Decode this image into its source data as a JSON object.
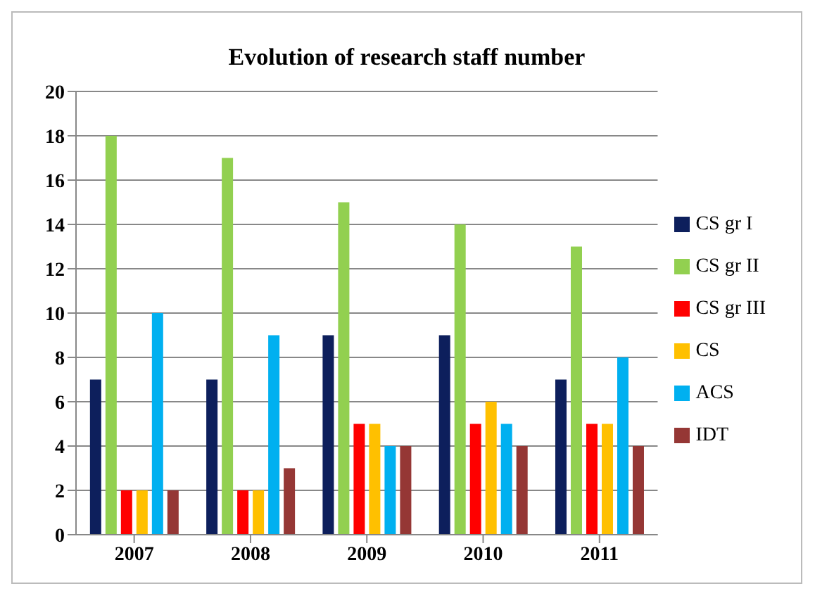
{
  "chart_data": {
    "type": "bar",
    "title": "Evolution of research staff number",
    "categories": [
      "2007",
      "2008",
      "2009",
      "2010",
      "2011"
    ],
    "series": [
      {
        "name": "CS gr I",
        "color": "#0d1f5c",
        "values": [
          7,
          7,
          9,
          9,
          7
        ]
      },
      {
        "name": "CS gr II",
        "color": "#92d050",
        "values": [
          18,
          17,
          15,
          14,
          13
        ]
      },
      {
        "name": "CS gr III",
        "color": "#ff0000",
        "values": [
          2,
          2,
          5,
          5,
          5
        ]
      },
      {
        "name": "CS",
        "color": "#ffc000",
        "values": [
          2,
          2,
          5,
          6,
          5
        ]
      },
      {
        "name": "ACS",
        "color": "#00b0f0",
        "values": [
          10,
          9,
          4,
          5,
          8
        ]
      },
      {
        "name": "IDT",
        "color": "#953735",
        "values": [
          2,
          3,
          4,
          4,
          4
        ]
      }
    ],
    "ylim": [
      0,
      20
    ],
    "yticks": [
      0,
      2,
      4,
      6,
      8,
      10,
      12,
      14,
      16,
      18,
      20
    ],
    "grid": "y",
    "legend": "right"
  }
}
